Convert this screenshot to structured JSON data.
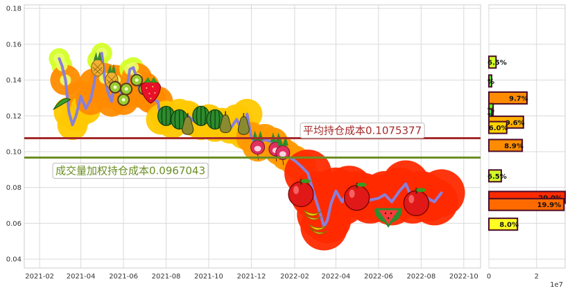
{
  "chart_data": [
    {
      "type": "line",
      "x_ticks": [
        "2021-02",
        "2021-04",
        "2021-06",
        "2021-08",
        "2021-10",
        "2021-12",
        "2022-02",
        "2022-04",
        "2022-06",
        "2022-08",
        "2022-10"
      ],
      "x_range": [
        "2021-01-10",
        "2022-10-25"
      ],
      "y_ticks": [
        "0.04",
        "0.06",
        "0.08",
        "0.10",
        "0.12",
        "0.14",
        "0.16",
        "0.18"
      ],
      "ylim": [
        0.035,
        0.182
      ],
      "grid": true,
      "series": [
        {
          "color": "#8a7fd9",
          "x": [
            "2021-03-01",
            "2021-03-05",
            "2021-03-10",
            "2021-03-15",
            "2021-03-20",
            "2021-03-25",
            "2021-04-01",
            "2021-04-08",
            "2021-04-15",
            "2021-04-20",
            "2021-04-25",
            "2021-05-01",
            "2021-05-05",
            "2021-05-10",
            "2021-05-15",
            "2021-05-20",
            "2021-05-25",
            "2021-06-01",
            "2021-06-05",
            "2021-06-10",
            "2021-06-15",
            "2021-06-20",
            "2021-06-25",
            "2021-07-01",
            "2021-07-10",
            "2021-07-20",
            "2021-07-25",
            "2021-08-01",
            "2021-08-10",
            "2021-08-20",
            "2021-09-01",
            "2021-09-10",
            "2021-09-20",
            "2021-10-01",
            "2021-10-10",
            "2021-10-20",
            "2021-11-01",
            "2021-11-10",
            "2021-11-20",
            "2021-11-25",
            "2021-12-01",
            "2021-12-10",
            "2021-12-20",
            "2022-01-01",
            "2022-01-10",
            "2022-01-20",
            "2022-02-01",
            "2022-02-10",
            "2022-02-20",
            "2022-03-01",
            "2022-03-10",
            "2022-03-15",
            "2022-03-20",
            "2022-03-25",
            "2022-04-01",
            "2022-04-10",
            "2022-04-20",
            "2022-05-01",
            "2022-05-10",
            "2022-05-20",
            "2022-06-01",
            "2022-06-10",
            "2022-06-20",
            "2022-07-01",
            "2022-07-10",
            "2022-07-20",
            "2022-08-01",
            "2022-08-10",
            "2022-08-20",
            "2022-08-30"
          ],
          "y": [
            0.152,
            0.148,
            0.14,
            0.122,
            0.115,
            0.12,
            0.131,
            0.124,
            0.129,
            0.138,
            0.151,
            0.155,
            0.141,
            0.133,
            0.128,
            0.14,
            0.138,
            0.129,
            0.133,
            0.146,
            0.147,
            0.141,
            0.133,
            0.136,
            0.13,
            0.128,
            0.118,
            0.12,
            0.116,
            0.121,
            0.12,
            0.117,
            0.115,
            0.118,
            0.114,
            0.116,
            0.113,
            0.118,
            0.11,
            0.121,
            0.108,
            0.103,
            0.107,
            0.105,
            0.101,
            0.098,
            0.095,
            0.092,
            0.088,
            0.076,
            0.065,
            0.058,
            0.062,
            0.071,
            0.078,
            0.072,
            0.079,
            0.076,
            0.075,
            0.073,
            0.074,
            0.076,
            0.072,
            0.078,
            0.082,
            0.073,
            0.076,
            0.074,
            0.072,
            0.077
          ]
        }
      ],
      "fruit_icons": [
        {
          "date": "2021-03-05",
          "y": 0.126,
          "fruit": "pea-pod"
        },
        {
          "date": "2021-04-25",
          "y": 0.148,
          "fruit": "pineapple"
        },
        {
          "date": "2021-05-15",
          "y": 0.141,
          "fruit": "pineapple"
        },
        {
          "date": "2021-05-20",
          "y": 0.136,
          "fruit": "kiwi"
        },
        {
          "date": "2021-06-01",
          "y": 0.129,
          "fruit": "kiwi"
        },
        {
          "date": "2021-06-05",
          "y": 0.135,
          "fruit": "kiwi"
        },
        {
          "date": "2021-06-20",
          "y": 0.14,
          "fruit": "kiwi"
        },
        {
          "date": "2021-07-01",
          "y": 0.135,
          "fruit": "kiwi"
        },
        {
          "date": "2021-07-10",
          "y": 0.134,
          "fruit": "strawberry"
        },
        {
          "date": "2021-08-01",
          "y": 0.12,
          "fruit": "watermelon"
        },
        {
          "date": "2021-08-20",
          "y": 0.118,
          "fruit": "watermelon"
        },
        {
          "date": "2021-09-01",
          "y": 0.115,
          "fruit": "pear"
        },
        {
          "date": "2021-09-20",
          "y": 0.12,
          "fruit": "watermelon"
        },
        {
          "date": "2021-10-10",
          "y": 0.118,
          "fruit": "watermelon"
        },
        {
          "date": "2021-10-25",
          "y": 0.116,
          "fruit": "pear"
        },
        {
          "date": "2021-11-20",
          "y": 0.115,
          "fruit": "pear"
        },
        {
          "date": "2021-12-10",
          "y": 0.104,
          "fruit": "radish"
        },
        {
          "date": "2022-01-05",
          "y": 0.103,
          "fruit": "radish"
        },
        {
          "date": "2022-01-15",
          "y": 0.101,
          "fruit": "radish"
        },
        {
          "date": "2022-02-10",
          "y": 0.077,
          "fruit": "apple"
        },
        {
          "date": "2022-02-25",
          "y": 0.066,
          "fruit": "banana"
        },
        {
          "date": "2022-03-05",
          "y": 0.058,
          "fruit": "banana"
        },
        {
          "date": "2022-05-01",
          "y": 0.075,
          "fruit": "apple"
        },
        {
          "date": "2022-06-15",
          "y": 0.064,
          "fruit": "watermelon-slice"
        },
        {
          "date": "2022-07-25",
          "y": 0.072,
          "fruit": "apple"
        }
      ],
      "avg_cost": {
        "label": "平均持仓成本0.1075377",
        "value": 0.1075377,
        "color": "#a52a2a"
      },
      "vwap_cost": {
        "label": "成交量加权持仓成本0.0967043",
        "value": 0.0967043,
        "color": "#6b8e23"
      }
    },
    {
      "type": "bar",
      "orientation": "horizontal",
      "x_ticks": [
        "0",
        "2"
      ],
      "x_scale_label": "1e7",
      "xlim": [
        0,
        3.2
      ],
      "bars": [
        {
          "y": 0.15,
          "value": 0.3,
          "label": "6.5%",
          "color": "#d4ff2a"
        },
        {
          "y": 0.1395,
          "value": 0.05,
          "label": "%",
          "color": "#5aff1a"
        },
        {
          "y": 0.13,
          "value": 1.6,
          "label": "9.7%",
          "color": "#ff8c00"
        },
        {
          "y": 0.1235,
          "value": 0.18,
          "label": "%",
          "color": "#5aff1a"
        },
        {
          "y": 0.1205,
          "value": 0.12,
          "label": "%",
          "color": "#2cff40"
        },
        {
          "y": 0.1165,
          "value": 1.45,
          "label": "9.6%",
          "color": "#ffb000"
        },
        {
          "y": 0.1135,
          "value": 0.75,
          "label": "6.0%",
          "color": "#ffd400"
        },
        {
          "y": 0.1035,
          "value": 1.4,
          "label": "8.9%",
          "color": "#ff8c00"
        },
        {
          "y": 0.0865,
          "value": 0.52,
          "label": "6.5%",
          "color": "#d4ff2a"
        },
        {
          "y": 0.0745,
          "value": 3.2,
          "label": "20.0%",
          "color": "#ff2a00"
        },
        {
          "y": 0.0705,
          "value": 3.15,
          "label": "19.9%",
          "color": "#ff6a00"
        },
        {
          "y": 0.0595,
          "value": 1.2,
          "label": "8.0%",
          "color": "#ffff22"
        }
      ]
    }
  ]
}
